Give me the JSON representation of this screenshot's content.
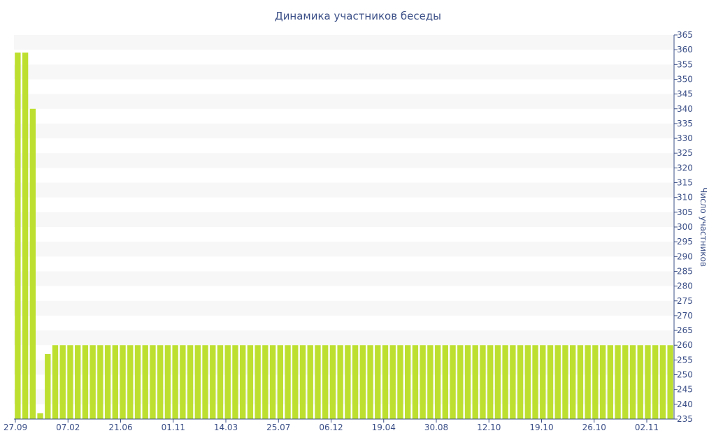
{
  "colors": {
    "bar": "#bde030",
    "band": "#f7f7f7",
    "axis": "#3b4f87",
    "text": "#3b4f87",
    "background": "#ffffff"
  },
  "chart_data": {
    "type": "bar",
    "title": "Динамика участников беседы",
    "xlabel": "",
    "ylabel": "Число участников",
    "ylim": [
      235,
      365
    ],
    "ytick_step": 5,
    "grid": "alternating horizontal bands",
    "x_tick_labels": [
      "27.09",
      "07.02",
      "21.06",
      "01.11",
      "14.03",
      "25.07",
      "06.12",
      "19.04",
      "30.08",
      "12.10",
      "19.10",
      "26.10",
      "02.11"
    ],
    "values": [
      359,
      359,
      340,
      237,
      257,
      260,
      260,
      260,
      260,
      260,
      260,
      260,
      260,
      260,
      260,
      260,
      260,
      260,
      260,
      260,
      260,
      260,
      260,
      260,
      260,
      260,
      260,
      260,
      260,
      260,
      260,
      260,
      260,
      260,
      260,
      260,
      260,
      260,
      260,
      260,
      260,
      260,
      260,
      260,
      260,
      260,
      260,
      260,
      260,
      260,
      260,
      260,
      260,
      260,
      260,
      260,
      260,
      260,
      260,
      260,
      260,
      260,
      260,
      260,
      260,
      260,
      260,
      260,
      260,
      260,
      260,
      260,
      260,
      260,
      260,
      260,
      260,
      260,
      260,
      260,
      260,
      260,
      260,
      260,
      260,
      260,
      260,
      260
    ]
  }
}
